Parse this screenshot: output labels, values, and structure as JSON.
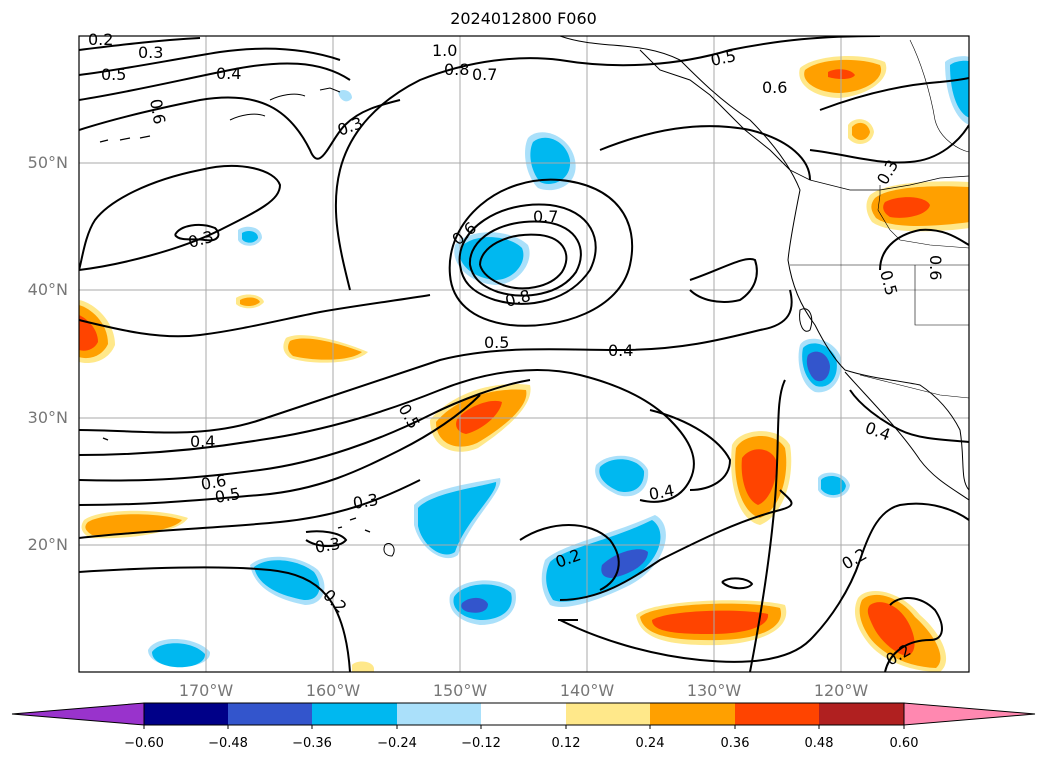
{
  "title": "2024012800 F060",
  "map": {
    "lat_labels": [
      "50°N",
      "40°N",
      "30°N",
      "20°N"
    ],
    "lon_labels": [
      "170°W",
      "160°W",
      "150°W",
      "140°W",
      "130°W",
      "120°W"
    ],
    "contour_labels": [
      "0.2",
      "0.3",
      "1.0",
      "0.8",
      "0.7",
      "0.5",
      "0.5",
      "0.6",
      "0.4",
      "0.6",
      "0.3",
      "0.3",
      "0.6",
      "0.7",
      "0.8",
      "0.5",
      "0.4",
      "0.5",
      "0.5",
      "0.4",
      "0.6",
      "0.5",
      "0.3",
      "0.3",
      "0.2",
      "0.4",
      "0.2",
      "0.2",
      "0.4",
      "0.2",
      "0.3",
      "0.6"
    ]
  },
  "colorbar": {
    "ticks": [
      "−0.60",
      "−0.48",
      "−0.36",
      "−0.24",
      "−0.12",
      "0.12",
      "0.24",
      "0.36",
      "0.48",
      "0.60"
    ],
    "colors": [
      "#9933cc",
      "#000088",
      "#3355cc",
      "#00b8f0",
      "#aae0fa",
      "#ffffff",
      "#ffe88a",
      "#ffa000",
      "#ff4400",
      "#b02020",
      "#ff88b0"
    ]
  }
}
